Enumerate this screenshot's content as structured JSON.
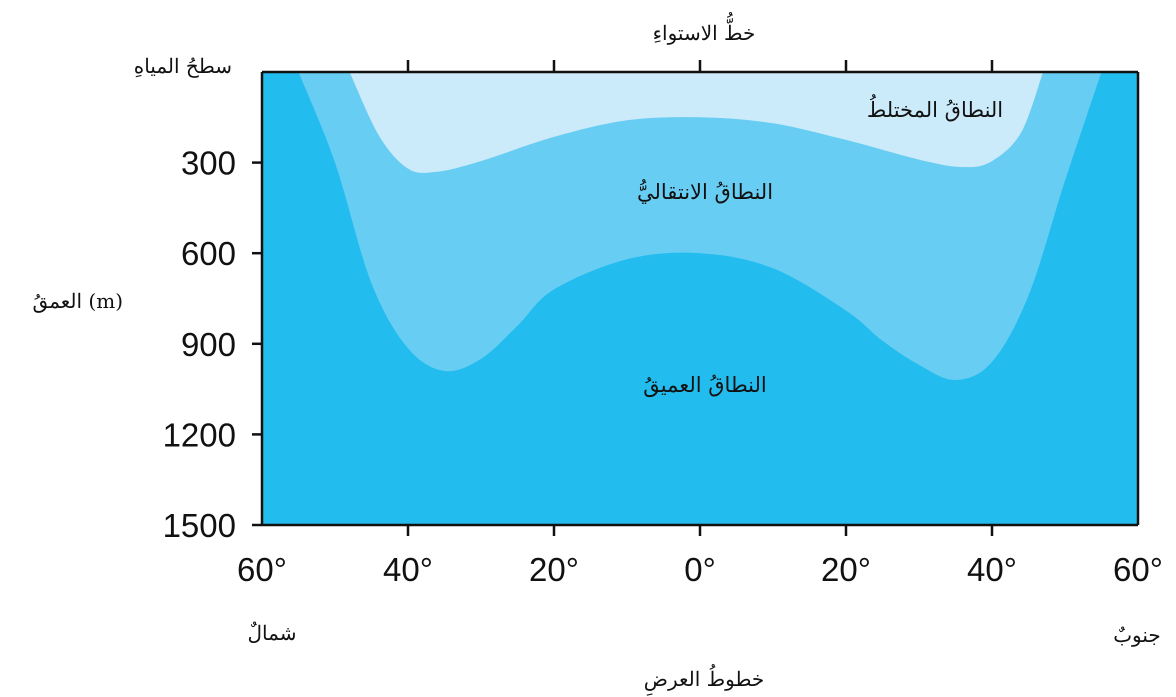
{
  "labels": {
    "equator": "خطُّ الاستواءِ",
    "surface": "سطحُ المياهِ",
    "depth_axis": "العمقُ (m)",
    "latitude_axis": "خطوطُ العرضِ",
    "north": "شمالٌ",
    "south": "جنوبٌ"
  },
  "zones": {
    "mixed": "النطاقُ المختلطُ",
    "transition": "النطاقُ الانتقاليُّ",
    "deep": "النطاقُ العميقُ"
  },
  "colors": {
    "deep": "#22bcef",
    "transition": "#68cdf2",
    "mixed": "#cbeafa",
    "axis": "#111111"
  },
  "chart_data": {
    "type": "area",
    "x_ticks": [
      "60°",
      "40°",
      "20°",
      "0°",
      "20°",
      "40°",
      "60°"
    ],
    "y_ticks": [
      "300",
      "600",
      "900",
      "1200",
      "1500"
    ],
    "ylim": [
      0,
      1500
    ],
    "series": [
      {
        "name": "النطاقُ المختلطُ",
        "lat": [
          -48,
          -44,
          -40,
          -36,
          -30,
          -20,
          -10,
          0,
          10,
          20,
          30,
          36,
          40,
          44,
          47
        ],
        "depth": [
          0,
          210,
          320,
          330,
          295,
          215,
          160,
          150,
          170,
          225,
          290,
          315,
          295,
          200,
          0
        ]
      },
      {
        "name": "النطاقُ الانتقاليُّ",
        "lat": [
          -55,
          -50,
          -45,
          -40,
          -35,
          -30,
          -25,
          -20,
          -10,
          0,
          10,
          20,
          25,
          30,
          35,
          40,
          45,
          50,
          55
        ],
        "depth": [
          0,
          300,
          700,
          915,
          990,
          950,
          840,
          720,
          620,
          600,
          650,
          790,
          890,
          970,
          1020,
          960,
          740,
          360,
          0
        ]
      }
    ]
  }
}
